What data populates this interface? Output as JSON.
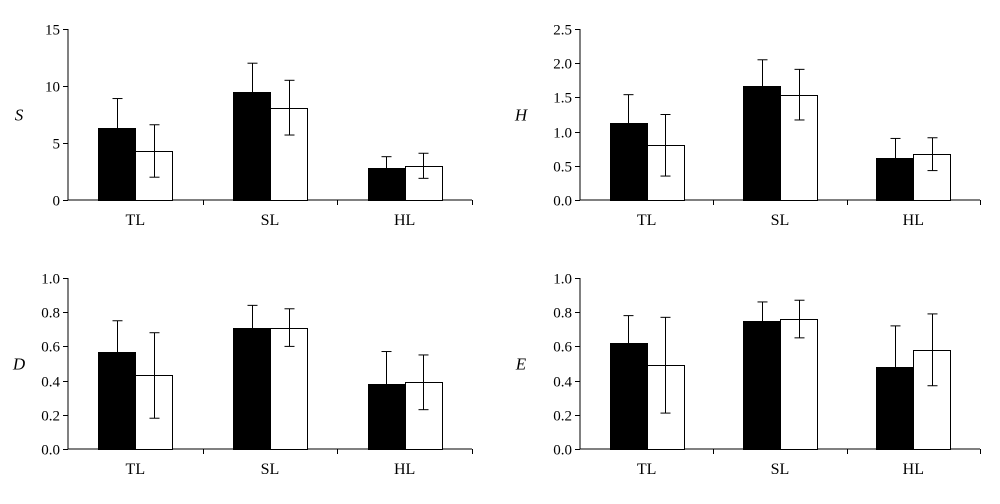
{
  "chart_data": [
    {
      "type": "bar",
      "ylabel": "S",
      "ylim": [
        0,
        15
      ],
      "yticks": [
        "0",
        "5",
        "10",
        "15"
      ],
      "categories": [
        "TL",
        "SL",
        "HL"
      ],
      "colors": [
        "#000000",
        "#ffffff"
      ],
      "series": [
        {
          "values": [
            6.3,
            9.5,
            2.8
          ],
          "errors": [
            2.6,
            2.5,
            1.0
          ]
        },
        {
          "values": [
            4.3,
            8.1,
            3.0
          ],
          "errors": [
            2.3,
            2.4,
            1.1
          ]
        }
      ]
    },
    {
      "type": "bar",
      "ylabel": "H",
      "ylim": [
        0,
        2.5
      ],
      "yticks": [
        "0.0",
        "0.5",
        "1.0",
        "1.5",
        "2.0",
        "2.5"
      ],
      "categories": [
        "TL",
        "SL",
        "HL"
      ],
      "colors": [
        "#000000",
        "#ffffff"
      ],
      "series": [
        {
          "values": [
            1.12,
            1.67,
            0.62
          ],
          "errors": [
            0.42,
            0.38,
            0.28
          ]
        },
        {
          "values": [
            0.8,
            1.54,
            0.67
          ],
          "errors": [
            0.45,
            0.37,
            0.24
          ]
        }
      ]
    },
    {
      "type": "bar",
      "ylabel": "D",
      "ylim": [
        0,
        1.0
      ],
      "yticks": [
        "0.0",
        "0.2",
        "0.4",
        "0.6",
        "0.8",
        "1.0"
      ],
      "categories": [
        "TL",
        "SL",
        "HL"
      ],
      "colors": [
        "#000000",
        "#ffffff"
      ],
      "series": [
        {
          "values": [
            0.57,
            0.71,
            0.38
          ],
          "errors": [
            0.18,
            0.13,
            0.19
          ]
        },
        {
          "values": [
            0.43,
            0.71,
            0.39
          ],
          "errors": [
            0.25,
            0.11,
            0.16
          ]
        }
      ]
    },
    {
      "type": "bar",
      "ylabel": "E",
      "ylim": [
        0,
        1.0
      ],
      "yticks": [
        "0.0",
        "0.2",
        "0.4",
        "0.6",
        "0.8",
        "1.0"
      ],
      "categories": [
        "TL",
        "SL",
        "HL"
      ],
      "colors": [
        "#000000",
        "#ffffff"
      ],
      "series": [
        {
          "values": [
            0.62,
            0.75,
            0.48
          ],
          "errors": [
            0.16,
            0.11,
            0.24
          ]
        },
        {
          "values": [
            0.49,
            0.76,
            0.58
          ],
          "errors": [
            0.28,
            0.11,
            0.21
          ]
        }
      ]
    }
  ]
}
